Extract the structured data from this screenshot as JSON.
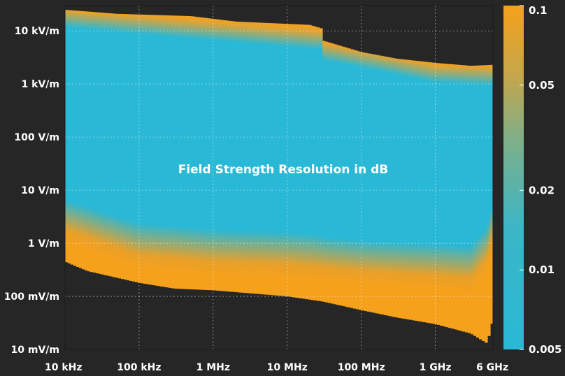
{
  "chart_data": {
    "type": "heatmap",
    "title": "",
    "xlabel": "",
    "ylabel": "",
    "x_scale": "log",
    "y_scale": "log",
    "xlim_hz": [
      10000,
      6000000000
    ],
    "ylim_v_per_m": [
      0.01,
      30000
    ],
    "x_ticks": [
      {
        "value": 10000,
        "label": "10 kHz"
      },
      {
        "value": 100000,
        "label": "100 kHz"
      },
      {
        "value": 1000000,
        "label": "1 MHz"
      },
      {
        "value": 10000000,
        "label": "10 MHz"
      },
      {
        "value": 100000000,
        "label": "100 MHz"
      },
      {
        "value": 1000000000,
        "label": "1 GHz"
      },
      {
        "value": 6000000000,
        "label": "6 GHz"
      }
    ],
    "y_ticks": [
      {
        "value": 0.01,
        "label": "10 mV/m"
      },
      {
        "value": 0.1,
        "label": "100 mV/m"
      },
      {
        "value": 1,
        "label": "1 V/m"
      },
      {
        "value": 10,
        "label": "10 V/m"
      },
      {
        "value": 100,
        "label": "100 V/m"
      },
      {
        "value": 1000,
        "label": "1 kV/m"
      },
      {
        "value": 10000,
        "label": "10 kV/m"
      }
    ],
    "annotation": "Field Strength Resolution in dB",
    "colorbar": {
      "scale": "log",
      "range": [
        0.005,
        0.1
      ],
      "ticks": [
        {
          "value": 0.1,
          "label": "0.1"
        },
        {
          "value": 0.05,
          "label": "0.05"
        },
        {
          "value": 0.02,
          "label": "0.02"
        },
        {
          "value": 0.01,
          "label": "0.01"
        },
        {
          "value": 0.005,
          "label": "0.005"
        }
      ],
      "color_low": "#29B8D6",
      "color_high": "#F5A11C"
    },
    "upper_boundary": [
      {
        "f": 10000,
        "e": 25000
      },
      {
        "f": 50000,
        "e": 21000
      },
      {
        "f": 500000,
        "e": 19000
      },
      {
        "f": 2000000,
        "e": 15000
      },
      {
        "f": 20000000,
        "e": 13000
      },
      {
        "f": 30000000,
        "e": 11000
      },
      {
        "f": 31000000,
        "e": 6500
      },
      {
        "f": 100000000,
        "e": 4000
      },
      {
        "f": 300000000,
        "e": 3000
      },
      {
        "f": 1000000000,
        "e": 2500
      },
      {
        "f": 3000000000,
        "e": 2200
      },
      {
        "f": 6000000000,
        "e": 2300
      }
    ],
    "lower_boundary": [
      {
        "f": 10000,
        "e": 0.45
      },
      {
        "f": 20000,
        "e": 0.3
      },
      {
        "f": 100000,
        "e": 0.18
      },
      {
        "f": 300000,
        "e": 0.14
      },
      {
        "f": 1000000,
        "e": 0.13
      },
      {
        "f": 10000000,
        "e": 0.1
      },
      {
        "f": 30000000,
        "e": 0.08
      },
      {
        "f": 100000000,
        "e": 0.055
      },
      {
        "f": 300000000,
        "e": 0.04
      },
      {
        "f": 1000000000,
        "e": 0.03
      },
      {
        "f": 3000000000,
        "e": 0.02
      },
      {
        "f": 5000000000,
        "e": 0.013
      },
      {
        "f": 6000000000,
        "e": 0.04
      }
    ],
    "orange_lower_edge": [
      {
        "f": 10000,
        "e": 1.8
      },
      {
        "f": 100000,
        "e": 0.6
      },
      {
        "f": 1000000,
        "e": 0.45
      },
      {
        "f": 10000000,
        "e": 0.4
      },
      {
        "f": 100000000,
        "e": 0.3
      },
      {
        "f": 1000000000,
        "e": 0.25
      },
      {
        "f": 3000000000,
        "e": 0.22
      },
      {
        "f": 5000000000,
        "e": 0.5
      },
      {
        "f": 6000000000,
        "e": 1.5
      }
    ],
    "orange_upper_edge": [
      {
        "f": 10000,
        "e": 23000
      },
      {
        "f": 30000000,
        "e": 9000
      },
      {
        "f": 31000000,
        "e": 5500
      },
      {
        "f": 1000000000,
        "e": 2100
      },
      {
        "f": 6000000000,
        "e": 1900
      }
    ]
  }
}
